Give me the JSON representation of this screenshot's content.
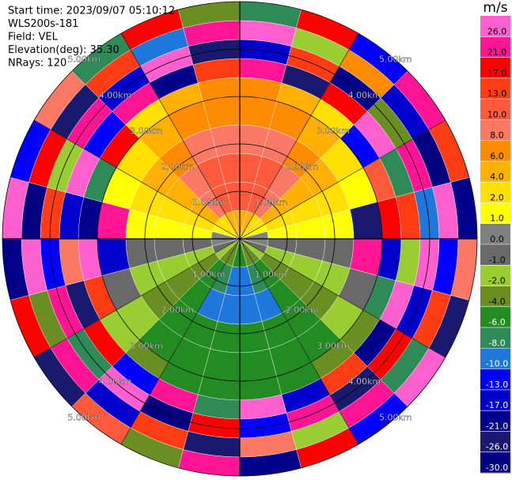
{
  "chart_data": {
    "type": "ppi",
    "header": [
      "Start time: 2023/09/07 05:10:12",
      "WLS200s-181",
      "Field: VEL",
      "Elevation(deg): 35.30",
      "NRays: 120"
    ],
    "unit": "m/s",
    "colorbar": {
      "ticks": [
        {
          "value": 26,
          "label": "26.0"
        },
        {
          "value": 21,
          "label": "21.0"
        },
        {
          "value": 17,
          "label": "17.0"
        },
        {
          "value": 13,
          "label": "13.0"
        },
        {
          "value": 10,
          "label": "10.0"
        },
        {
          "value": 8,
          "label": "8.0"
        },
        {
          "value": 6,
          "label": "6.0"
        },
        {
          "value": 4,
          "label": "4.0"
        },
        {
          "value": 2,
          "label": "2.0"
        },
        {
          "value": 1,
          "label": "1.0"
        },
        {
          "value": 0,
          "label": "0.0"
        },
        {
          "value": -1,
          "label": "-1.0"
        },
        {
          "value": -2,
          "label": "-2.0"
        },
        {
          "value": -4,
          "label": "-4.0"
        },
        {
          "value": -6,
          "label": "-6.0"
        },
        {
          "value": -8,
          "label": "-8.0"
        },
        {
          "value": -10,
          "label": "-10.0"
        },
        {
          "value": -13,
          "label": "-13.0"
        },
        {
          "value": -17,
          "label": "-17.0"
        },
        {
          "value": -21,
          "label": "-21.0"
        },
        {
          "value": -26,
          "label": "-26.0"
        },
        {
          "value": -30,
          "label": "-30.0"
        }
      ],
      "colors": [
        "#ff5fcf",
        "#ff1493",
        "#ff0000",
        "#ff3c14",
        "#ff5a3c",
        "#fa7864",
        "#ff8c00",
        "#ffb000",
        "#ffe000",
        "#ffff00",
        "#808080",
        "#696969",
        "#9acd32",
        "#6b8e23",
        "#228b22",
        "#2e8b57",
        "#1e78dc",
        "#0000ff",
        "#0000cd",
        "#00008b",
        "#191970",
        "#000080"
      ]
    },
    "range_rings": [
      {
        "value": 1,
        "label": "1.00km"
      },
      {
        "value": 2,
        "label": "2.00km"
      },
      {
        "value": 3,
        "label": "3.00km"
      },
      {
        "value": 4,
        "label": "4.00km"
      },
      {
        "value": 5,
        "label": "5.00km"
      }
    ],
    "gate_edges_km": [
      0,
      0.6,
      1.2,
      1.8,
      2.4,
      3.0,
      3.4,
      3.8,
      4.2,
      4.6,
      5.0
    ],
    "values": [
      [
        4,
        10,
        10,
        8,
        6,
        6,
        21,
        -17,
        26,
        -8
      ],
      [
        4,
        10,
        10,
        8,
        6,
        4,
        -26,
        13,
        -2,
        17
      ],
      [
        2,
        8,
        8,
        6,
        4,
        2,
        17,
        -21,
        6,
        -13
      ],
      [
        2,
        4,
        4,
        4,
        2,
        -13,
        26,
        -4,
        -17,
        21
      ],
      [
        1,
        2,
        2,
        2,
        1,
        10,
        -8,
        21,
        -30,
        13
      ],
      [
        0,
        1,
        1,
        1,
        -26,
        17,
        13,
        -10,
        26,
        -21
      ],
      [
        0,
        -1,
        -1,
        -1,
        21,
        -17,
        -2,
        26,
        -13,
        8
      ],
      [
        -1,
        -2,
        -2,
        -2,
        -1,
        -8,
        26,
        -17,
        13,
        -26
      ],
      [
        -2,
        -4,
        -4,
        -4,
        -2,
        -4,
        -21,
        17,
        -8,
        26
      ],
      [
        -4,
        -6,
        -6,
        -6,
        -6,
        -4,
        13,
        -26,
        21,
        -13
      ],
      [
        -4,
        -8,
        -10,
        -6,
        -6,
        -6,
        -17,
        21,
        -2,
        17
      ],
      [
        -6,
        -10,
        -10,
        -6,
        -6,
        -6,
        26,
        -13,
        8,
        -21
      ],
      [
        -6,
        -10,
        -10,
        -6,
        -6,
        -6,
        -8,
        17,
        -26,
        21
      ],
      [
        -4,
        -8,
        -10,
        -6,
        -6,
        -6,
        21,
        -30,
        13,
        -4
      ],
      [
        -4,
        -6,
        -6,
        -6,
        -6,
        -4,
        -13,
        26,
        -17,
        10
      ],
      [
        -2,
        -4,
        -4,
        -4,
        -2,
        -2,
        17,
        -8,
        21,
        -26
      ],
      [
        -1,
        -2,
        -2,
        -2,
        -1,
        13,
        -26,
        21,
        -4,
        17
      ],
      [
        0,
        -1,
        -1,
        -1,
        -17,
        26,
        8,
        -13,
        26,
        -21
      ],
      [
        0,
        1,
        1,
        1,
        21,
        -21,
        -17,
        13,
        -30,
        26
      ],
      [
        1,
        2,
        2,
        2,
        1,
        -8,
        26,
        -2,
        17,
        -13
      ],
      [
        2,
        4,
        4,
        4,
        2,
        17,
        -13,
        21,
        -26,
        8
      ],
      [
        2,
        8,
        8,
        6,
        4,
        2,
        21,
        -17,
        13,
        -8
      ],
      [
        4,
        10,
        10,
        8,
        6,
        4,
        -21,
        26,
        -10,
        17
      ],
      [
        4,
        10,
        10,
        8,
        6,
        6,
        13,
        -26,
        21,
        -4
      ]
    ]
  }
}
